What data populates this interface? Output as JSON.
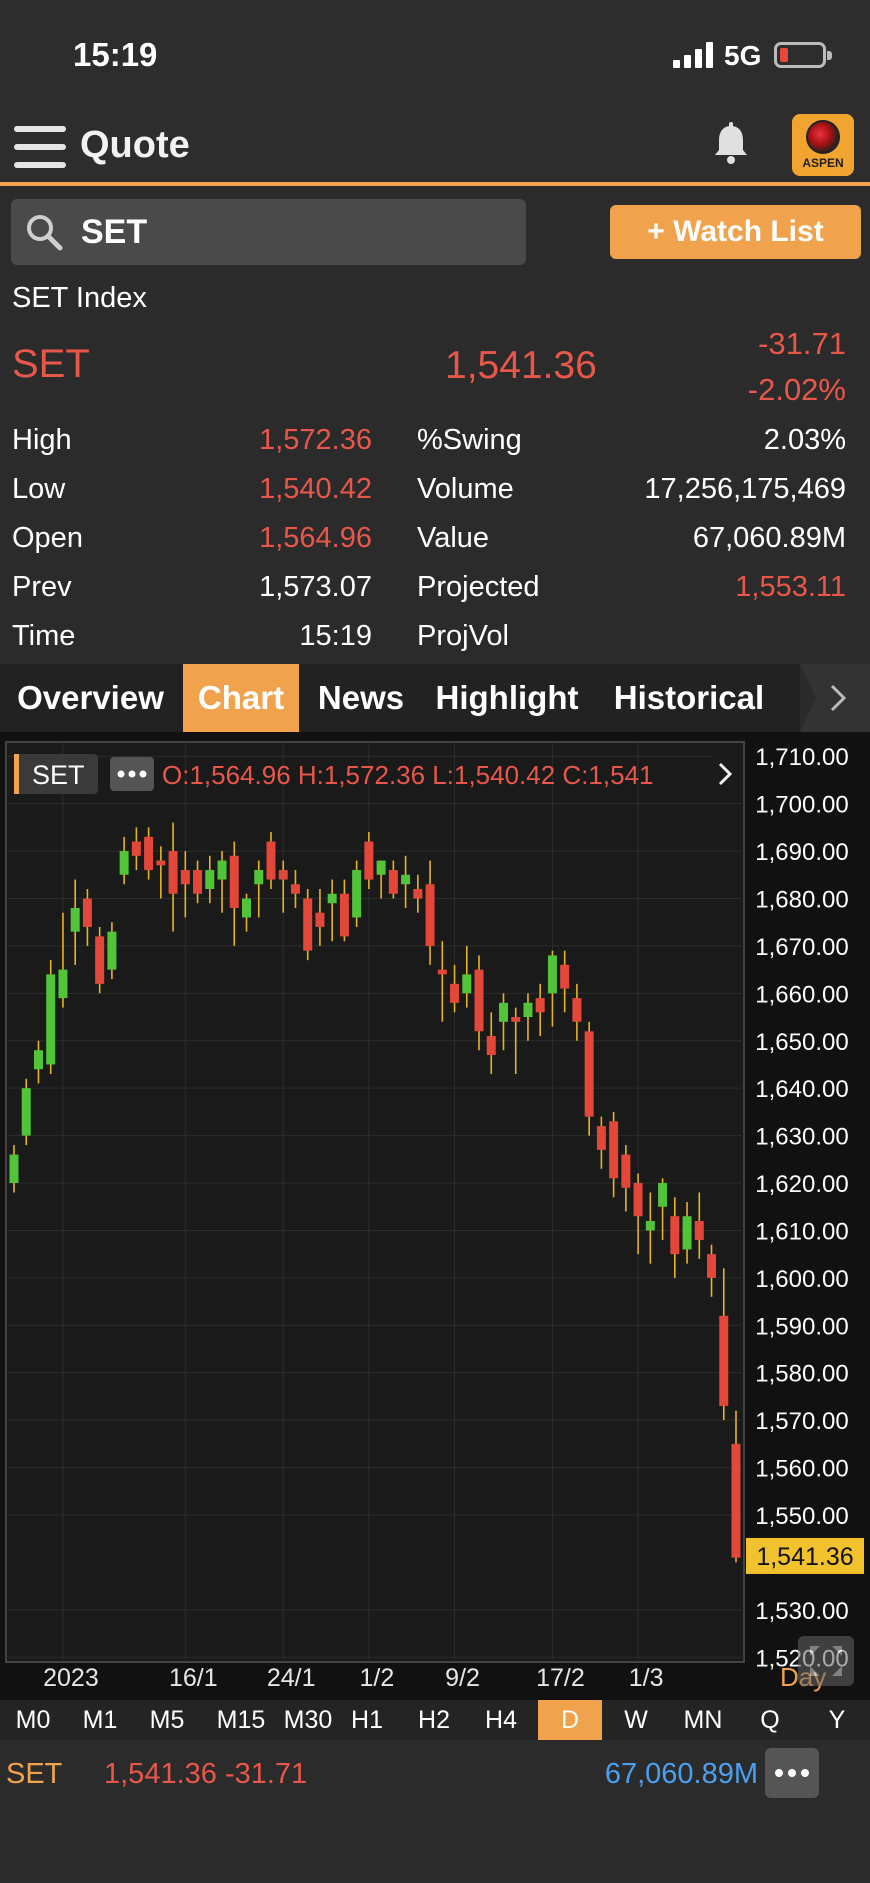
{
  "status": {
    "time": "15:19",
    "network": "5G"
  },
  "appbar": {
    "title": "Quote"
  },
  "logo": {
    "text": "ASPEN"
  },
  "search": {
    "value": "SET"
  },
  "watchlist_label": "+ Watch List",
  "quote": {
    "index_name": "SET Index",
    "symbol": "SET",
    "last": "1,541.36",
    "change": "-31.71",
    "pct_change": "-2.02%",
    "fields": [
      {
        "label": "High",
        "value": "1,572.36",
        "color": "red"
      },
      {
        "label": "Low",
        "value": "1,540.42",
        "color": "red"
      },
      {
        "label": "Open",
        "value": "1,564.96",
        "color": "red"
      },
      {
        "label": "Prev",
        "value": "1,573.07",
        "color": "white"
      },
      {
        "label": "Time",
        "value": "15:19",
        "color": "white"
      }
    ],
    "fields2": [
      {
        "label": "%Swing",
        "value": "2.03%",
        "color": "white"
      },
      {
        "label": "Volume",
        "value": "17,256,175,469",
        "color": "white"
      },
      {
        "label": "Value",
        "value": "67,060.89M",
        "color": "white"
      },
      {
        "label": "Projected",
        "value": "1,553.11",
        "color": "red"
      },
      {
        "label": "ProjVol",
        "value": "",
        "color": "white"
      }
    ]
  },
  "tabs": [
    "Overview",
    "Chart",
    "News",
    "Highlight",
    "Historical"
  ],
  "active_tab": "Chart",
  "chart_info": {
    "symbol": "SET",
    "ohlc": "O:1,564.96  H:1,572.36  L:1,540.42  C:1,541",
    "period": "Day",
    "last_label": "1,541.36"
  },
  "chart_data": {
    "type": "candlestick",
    "x_labels": [
      "2023",
      "16/1",
      "24/1",
      "1/2",
      "9/2",
      "17/2",
      "1/3"
    ],
    "y_ticks": [
      1710,
      1700,
      1690,
      1680,
      1670,
      1660,
      1650,
      1640,
      1630,
      1620,
      1610,
      1600,
      1590,
      1580,
      1570,
      1560,
      1550,
      1530,
      1520
    ],
    "ylim": [
      1519,
      1713
    ],
    "last_price": 1541.36,
    "colors": {
      "up": "#52c43a",
      "down": "#e2473a",
      "axis_text": "#ffffff",
      "grid": "#2c2c2c"
    },
    "candles": [
      {
        "o": 1620,
        "h": 1628,
        "l": 1618,
        "c": 1626
      },
      {
        "o": 1630,
        "h": 1642,
        "l": 1628,
        "c": 1640
      },
      {
        "o": 1644,
        "h": 1650,
        "l": 1641,
        "c": 1648
      },
      {
        "o": 1645,
        "h": 1667,
        "l": 1643,
        "c": 1664
      },
      {
        "o": 1659,
        "h": 1677,
        "l": 1657,
        "c": 1665
      },
      {
        "o": 1673,
        "h": 1684,
        "l": 1666,
        "c": 1678
      },
      {
        "o": 1680,
        "h": 1682,
        "l": 1670,
        "c": 1674
      },
      {
        "o": 1672,
        "h": 1674,
        "l": 1660,
        "c": 1662
      },
      {
        "o": 1665,
        "h": 1675,
        "l": 1663,
        "c": 1673
      },
      {
        "o": 1685,
        "h": 1693,
        "l": 1683,
        "c": 1690
      },
      {
        "o": 1692,
        "h": 1695,
        "l": 1686,
        "c": 1689
      },
      {
        "o": 1693,
        "h": 1695,
        "l": 1684,
        "c": 1686
      },
      {
        "o": 1688,
        "h": 1691,
        "l": 1680,
        "c": 1687
      },
      {
        "o": 1690,
        "h": 1696,
        "l": 1673,
        "c": 1681
      },
      {
        "o": 1686,
        "h": 1690,
        "l": 1676,
        "c": 1683
      },
      {
        "o": 1686,
        "h": 1688,
        "l": 1679,
        "c": 1681
      },
      {
        "o": 1682,
        "h": 1689,
        "l": 1679,
        "c": 1686
      },
      {
        "o": 1684,
        "h": 1690,
        "l": 1677,
        "c": 1688
      },
      {
        "o": 1689,
        "h": 1692,
        "l": 1670,
        "c": 1678
      },
      {
        "o": 1676,
        "h": 1681,
        "l": 1673,
        "c": 1680
      },
      {
        "o": 1683,
        "h": 1688,
        "l": 1676,
        "c": 1686
      },
      {
        "o": 1692,
        "h": 1694,
        "l": 1682,
        "c": 1684
      },
      {
        "o": 1686,
        "h": 1688,
        "l": 1677,
        "c": 1684
      },
      {
        "o": 1683,
        "h": 1686,
        "l": 1678,
        "c": 1681
      },
      {
        "o": 1680,
        "h": 1682,
        "l": 1667,
        "c": 1669
      },
      {
        "o": 1677,
        "h": 1682,
        "l": 1670,
        "c": 1674
      },
      {
        "o": 1679,
        "h": 1684,
        "l": 1671,
        "c": 1681
      },
      {
        "o": 1681,
        "h": 1684,
        "l": 1671,
        "c": 1672
      },
      {
        "o": 1676,
        "h": 1688,
        "l": 1674,
        "c": 1686
      },
      {
        "o": 1692,
        "h": 1694,
        "l": 1682,
        "c": 1684
      },
      {
        "o": 1685,
        "h": 1688,
        "l": 1680,
        "c": 1688
      },
      {
        "o": 1686,
        "h": 1688,
        "l": 1680,
        "c": 1681
      },
      {
        "o": 1683,
        "h": 1689,
        "l": 1678,
        "c": 1685
      },
      {
        "o": 1682,
        "h": 1685,
        "l": 1677,
        "c": 1680
      },
      {
        "o": 1683,
        "h": 1688,
        "l": 1666,
        "c": 1670
      },
      {
        "o": 1665,
        "h": 1671,
        "l": 1654,
        "c": 1664
      },
      {
        "o": 1662,
        "h": 1666,
        "l": 1656,
        "c": 1658
      },
      {
        "o": 1660,
        "h": 1670,
        "l": 1657,
        "c": 1664
      },
      {
        "o": 1665,
        "h": 1668,
        "l": 1648,
        "c": 1652
      },
      {
        "o": 1651,
        "h": 1656,
        "l": 1643,
        "c": 1647
      },
      {
        "o": 1654,
        "h": 1660,
        "l": 1648,
        "c": 1658
      },
      {
        "o": 1655,
        "h": 1657,
        "l": 1643,
        "c": 1654
      },
      {
        "o": 1655,
        "h": 1660,
        "l": 1650,
        "c": 1658
      },
      {
        "o": 1659,
        "h": 1662,
        "l": 1651,
        "c": 1656
      },
      {
        "o": 1660,
        "h": 1669,
        "l": 1653,
        "c": 1668
      },
      {
        "o": 1666,
        "h": 1669,
        "l": 1656,
        "c": 1661
      },
      {
        "o": 1659,
        "h": 1662,
        "l": 1650,
        "c": 1654
      },
      {
        "o": 1652,
        "h": 1654,
        "l": 1630,
        "c": 1634
      },
      {
        "o": 1632,
        "h": 1634,
        "l": 1623,
        "c": 1627
      },
      {
        "o": 1633,
        "h": 1635,
        "l": 1617,
        "c": 1621
      },
      {
        "o": 1626,
        "h": 1628,
        "l": 1614,
        "c": 1619
      },
      {
        "o": 1620,
        "h": 1622,
        "l": 1605,
        "c": 1613
      },
      {
        "o": 1610,
        "h": 1618,
        "l": 1603,
        "c": 1612
      },
      {
        "o": 1615,
        "h": 1621,
        "l": 1608,
        "c": 1620
      },
      {
        "o": 1613,
        "h": 1617,
        "l": 1600,
        "c": 1605
      },
      {
        "o": 1606,
        "h": 1616,
        "l": 1603,
        "c": 1613
      },
      {
        "o": 1612,
        "h": 1618,
        "l": 1604,
        "c": 1608
      },
      {
        "o": 1605,
        "h": 1607,
        "l": 1596,
        "c": 1600
      },
      {
        "o": 1592,
        "h": 1602,
        "l": 1570,
        "c": 1573
      },
      {
        "o": 1565,
        "h": 1572,
        "l": 1540,
        "c": 1541
      }
    ]
  },
  "timeframes": [
    "M0",
    "M1",
    "M5",
    "M15",
    "M30",
    "H1",
    "H2",
    "H4",
    "D",
    "W",
    "MN",
    "Q",
    "Y"
  ],
  "active_timeframe": "D",
  "footer": {
    "symbol": "SET",
    "price_change": "1,541.36 -31.71",
    "value": "67,060.89M"
  }
}
